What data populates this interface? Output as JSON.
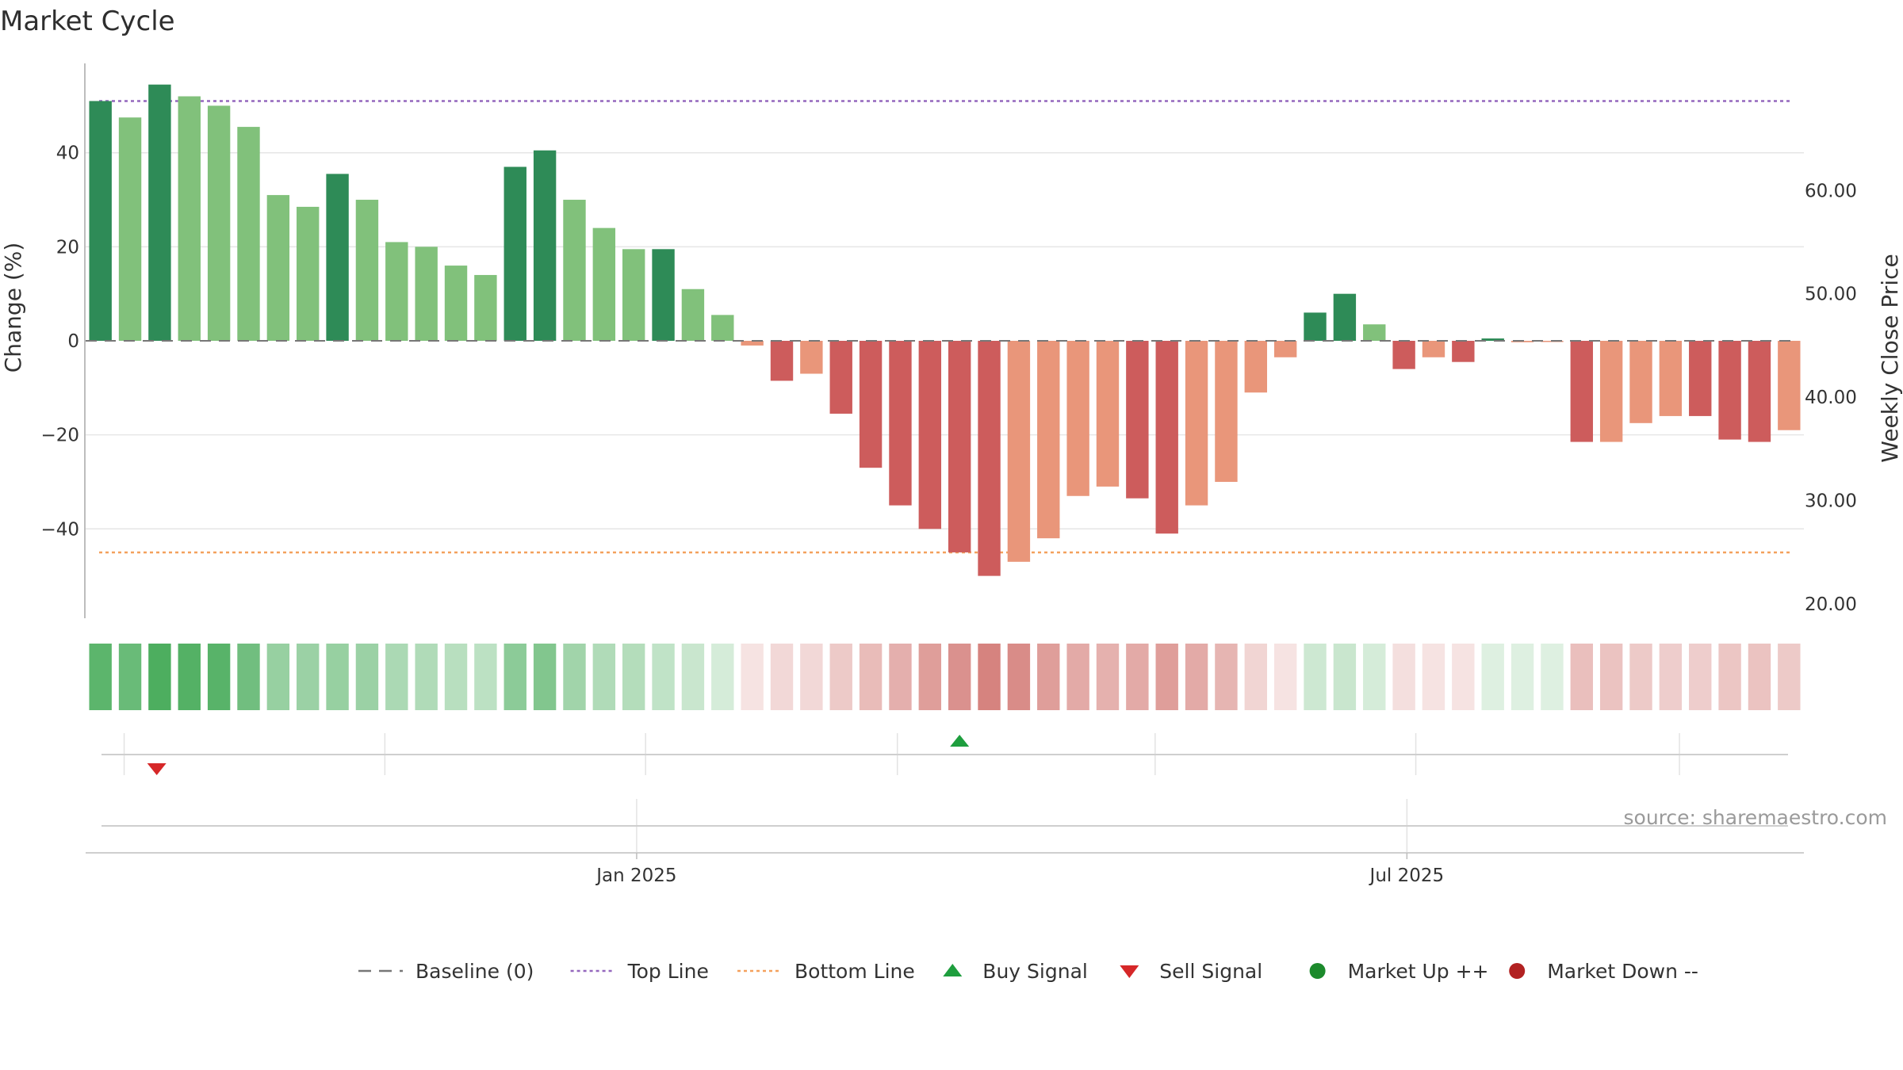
{
  "chart_data": {
    "type": "bar",
    "title": "Market Cycle",
    "ylabel": "Change (%)",
    "y2label": "Weekly Close Price",
    "ylim": [
      -59,
      59
    ],
    "y2lim": [
      18.6,
      72.3
    ],
    "yticks": [
      -40,
      -20,
      0,
      20,
      40
    ],
    "y2ticks": [
      "20.00",
      "30.00",
      "40.00",
      "50.00",
      "60.00"
    ],
    "y2tick_values": [
      20,
      30,
      40,
      50,
      60
    ],
    "top_line": 51,
    "bottom_line": -45,
    "xticks": [
      {
        "label": "Jan 2025",
        "index": 18.6
      },
      {
        "label": "Jul 2025",
        "index": 44.6
      }
    ],
    "minor_xgrid_index": [
      1.3,
      10.1,
      18.9,
      27.4,
      36.1,
      44.9,
      53.8
    ],
    "values": [
      51,
      47.5,
      54.5,
      52,
      50,
      45.5,
      31,
      28.5,
      35.5,
      30,
      21,
      20,
      16,
      14,
      37,
      40.5,
      30,
      24,
      19.5,
      19.5,
      11,
      5.5,
      -1,
      -8.5,
      -7,
      -15.5,
      -27,
      -35,
      -40,
      -45,
      -50,
      -47,
      -42,
      -33,
      -31,
      -33.5,
      -41,
      -35,
      -30,
      -11,
      -3.5,
      6,
      10,
      3.5,
      -6,
      -3.5,
      -4.5,
      0.5,
      -0.3,
      -0.2,
      -21.5,
      -21.5,
      -17.5,
      -16,
      -16,
      -21,
      -21.5,
      -19
    ],
    "market_flag": [
      "up",
      "",
      "up",
      "",
      "",
      "",
      "",
      "",
      "up",
      "",
      "",
      "",
      "",
      "",
      "up",
      "up",
      "",
      "",
      "",
      "up",
      "",
      "",
      "",
      "down",
      "",
      "down",
      "down",
      "down",
      "down",
      "down",
      "down",
      "",
      "",
      "",
      "",
      "down",
      "down",
      "",
      "",
      "",
      "",
      "up",
      "up",
      "",
      "down",
      "",
      "down",
      "up",
      "",
      "",
      "down",
      "",
      "",
      "",
      "down",
      "down",
      "down",
      ""
    ],
    "heat": [
      0.78,
      0.72,
      0.85,
      0.82,
      0.8,
      0.68,
      0.5,
      0.48,
      0.5,
      0.48,
      0.4,
      0.38,
      0.34,
      0.32,
      0.55,
      0.6,
      0.45,
      0.38,
      0.36,
      0.3,
      0.26,
      0.2,
      -0.16,
      -0.22,
      -0.22,
      -0.3,
      -0.38,
      -0.45,
      -0.55,
      -0.62,
      -0.7,
      -0.65,
      -0.55,
      -0.48,
      -0.44,
      -0.48,
      -0.55,
      -0.48,
      -0.42,
      -0.24,
      -0.16,
      0.24,
      0.26,
      0.2,
      -0.18,
      -0.16,
      -0.16,
      0.16,
      0.16,
      0.16,
      -0.36,
      -0.34,
      -0.3,
      -0.28,
      -0.28,
      -0.32,
      -0.34,
      -0.3
    ],
    "buy_signals": [
      29.5
    ],
    "sell_signals": [
      2.4
    ],
    "source": "source: sharemaestro.com",
    "legend": [
      {
        "label": "Baseline (0)",
        "icon": "dash",
        "color": "#777777"
      },
      {
        "label": "Top Line",
        "icon": "dotted",
        "color": "#9467bd"
      },
      {
        "label": "Bottom Line",
        "icon": "dotted",
        "color": "#f4a15d"
      },
      {
        "label": "Buy Signal",
        "icon": "triangle-up",
        "color": "#1e9e3e"
      },
      {
        "label": "Sell Signal",
        "icon": "triangle-down",
        "color": "#d62728"
      },
      {
        "label": "Market Up ++",
        "icon": "circle",
        "color": "#1c8a2c"
      },
      {
        "label": "Market Down --",
        "icon": "circle",
        "color": "#b22222"
      }
    ],
    "colors": {
      "up_strong": "#2e8b57",
      "up": "#81c17b",
      "down_strong": "#cd5c5c",
      "down": "#e9967a",
      "top_line": "#9467bd",
      "bottom_line": "#f4a15d",
      "baseline": "#777777",
      "buy": "#1e9e3e",
      "sell": "#d62728",
      "grid": "#e6e6e6"
    }
  }
}
